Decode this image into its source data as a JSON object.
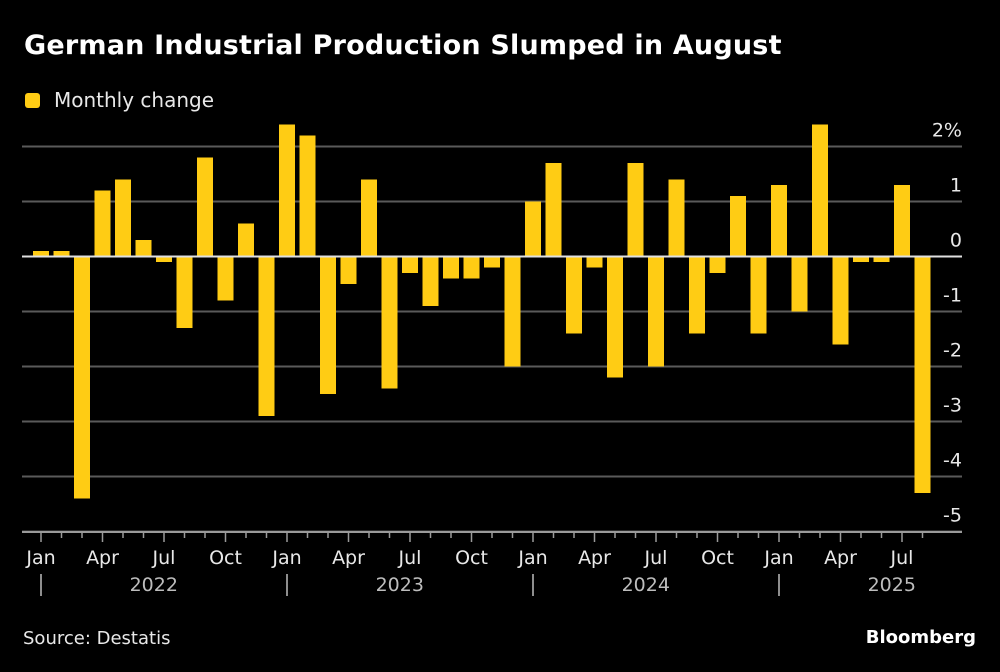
{
  "title": "German Industrial Production Slumped in August",
  "legend": [
    {
      "label": "Monthly change",
      "color": "#ffcc14"
    }
  ],
  "source": "Source: Destatis",
  "brand": "Bloomberg",
  "chart_data": {
    "type": "bar",
    "title": "German Industrial Production Slumped in August",
    "xlabel": "",
    "ylabel": "",
    "ylim": [
      -5,
      2.4
    ],
    "y_ticks": [
      2,
      1,
      0,
      -1,
      -2,
      -3,
      -4,
      -5
    ],
    "y_tick_labels": [
      "2%",
      "1",
      "0",
      "-1",
      "-2",
      "-3",
      "-4",
      "-5"
    ],
    "y_axis_side": "right",
    "grid": true,
    "legend_position": "top-left",
    "x_month_labels": [
      {
        "index": 0,
        "label": "Jan"
      },
      {
        "index": 3,
        "label": "Apr"
      },
      {
        "index": 6,
        "label": "Jul"
      },
      {
        "index": 9,
        "label": "Oct"
      },
      {
        "index": 12,
        "label": "Jan"
      },
      {
        "index": 15,
        "label": "Apr"
      },
      {
        "index": 18,
        "label": "Jul"
      },
      {
        "index": 21,
        "label": "Oct"
      },
      {
        "index": 24,
        "label": "Jan"
      },
      {
        "index": 27,
        "label": "Apr"
      },
      {
        "index": 30,
        "label": "Jul"
      },
      {
        "index": 33,
        "label": "Oct"
      },
      {
        "index": 36,
        "label": "Jan"
      },
      {
        "index": 39,
        "label": "Apr"
      },
      {
        "index": 42,
        "label": "Jul"
      }
    ],
    "x_year_labels": [
      {
        "index": 0,
        "label": "2022"
      },
      {
        "index": 12,
        "label": "2023"
      },
      {
        "index": 24,
        "label": "2024"
      },
      {
        "index": 36,
        "label": "2025"
      }
    ],
    "categories": [
      "Jan 2022",
      "Feb 2022",
      "Mar 2022",
      "Apr 2022",
      "May 2022",
      "Jun 2022",
      "Jul 2022",
      "Aug 2022",
      "Sep 2022",
      "Oct 2022",
      "Nov 2022",
      "Dec 2022",
      "Jan 2023",
      "Feb 2023",
      "Mar 2023",
      "Apr 2023",
      "May 2023",
      "Jun 2023",
      "Jul 2023",
      "Aug 2023",
      "Sep 2023",
      "Oct 2023",
      "Nov 2023",
      "Dec 2023",
      "Jan 2024",
      "Feb 2024",
      "Mar 2024",
      "Apr 2024",
      "May 2024",
      "Jun 2024",
      "Jul 2024",
      "Aug 2024",
      "Sep 2024",
      "Oct 2024",
      "Nov 2024",
      "Dec 2024",
      "Jan 2025",
      "Feb 2025",
      "Mar 2025",
      "Apr 2025",
      "May 2025",
      "Jun 2025",
      "Jul 2025",
      "Aug 2025"
    ],
    "series": [
      {
        "name": "Monthly change",
        "color": "#ffcc14",
        "values": [
          0.1,
          0.1,
          -4.4,
          1.2,
          1.4,
          0.3,
          -0.1,
          -1.3,
          1.8,
          -0.8,
          0.6,
          -2.9,
          2.4,
          2.2,
          -2.5,
          -0.5,
          1.4,
          -2.4,
          -0.3,
          -0.9,
          -0.4,
          -0.4,
          -0.2,
          -2.0,
          1.0,
          1.7,
          -1.4,
          -0.2,
          -2.2,
          1.7,
          -2.0,
          1.4,
          -1.4,
          -0.3,
          1.1,
          -1.4,
          1.3,
          -1.0,
          2.4,
          -1.6,
          -0.1,
          -0.1,
          1.3,
          -4.3
        ]
      }
    ]
  }
}
